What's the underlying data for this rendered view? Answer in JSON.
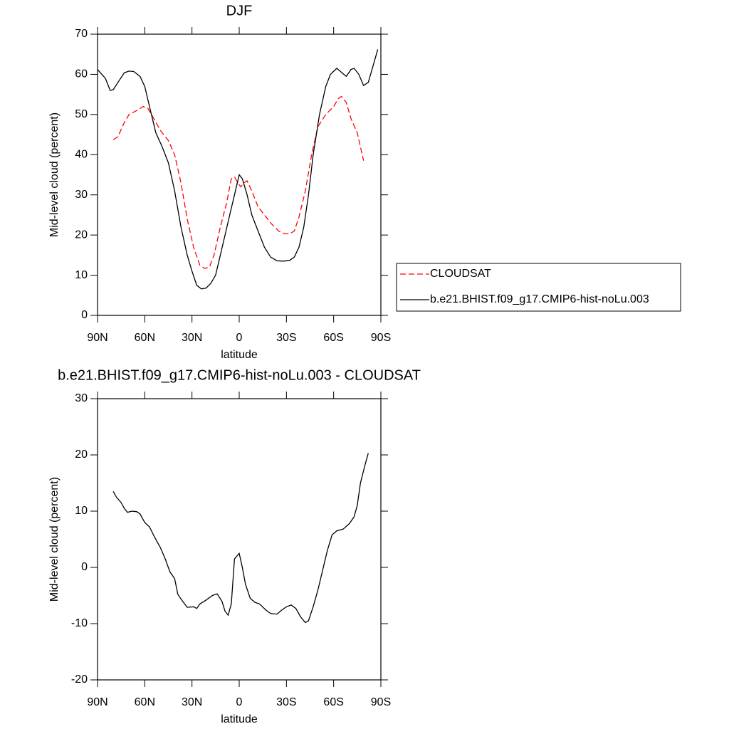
{
  "chart_data": [
    {
      "type": "line",
      "title": "DJF",
      "xlabel": "latitude",
      "ylabel": "Mid-level cloud (percent)",
      "xlim": [
        90,
        -90
      ],
      "xticks": [
        {
          "value": 90,
          "label": "90N"
        },
        {
          "value": 60,
          "label": "60N"
        },
        {
          "value": 30,
          "label": "30N"
        },
        0,
        {
          "value": -30,
          "label": "30S"
        },
        {
          "value": -60,
          "label": "60S"
        },
        {
          "value": -90,
          "label": "90S"
        }
      ],
      "ylim": [
        0,
        70
      ],
      "yticks": [
        0,
        10,
        20,
        30,
        40,
        50,
        60,
        70
      ],
      "legend": "right",
      "series": [
        {
          "name": "CLOUDSAT",
          "color": "#ff0000",
          "line_style": "dashed",
          "x": [
            80,
            77,
            73,
            70,
            65,
            61,
            58,
            55,
            50,
            45,
            41,
            37,
            33,
            29,
            25,
            22,
            19,
            16,
            12,
            8,
            5,
            3,
            1,
            -1,
            -3,
            -5,
            -8,
            -12,
            -16,
            -20,
            -25,
            -29,
            -32,
            -35,
            -38,
            -42,
            -46,
            -50,
            -55,
            -60,
            -63,
            -65,
            -68,
            -71,
            -75,
            -79
          ],
          "values": [
            43.7,
            44.5,
            48,
            50,
            51,
            52,
            51.5,
            49.5,
            46,
            43.5,
            40,
            33,
            24,
            17,
            12.5,
            11.7,
            12,
            15,
            22,
            28,
            34,
            34.5,
            33,
            32,
            33,
            33.5,
            31,
            27,
            25,
            23,
            21,
            20.3,
            20.3,
            21,
            24.5,
            31,
            40,
            47,
            50,
            52,
            54,
            54.5,
            53,
            49,
            45.5,
            38.5
          ]
        },
        {
          "name": "b.e21.BHIST.f09_g17.CMIP6-hist-noLu.003",
          "color": "#000000",
          "line_style": "solid",
          "x": [
            90,
            85,
            82,
            80,
            77,
            73,
            70,
            67,
            63,
            60,
            57,
            53,
            49,
            45,
            41,
            37,
            33,
            30,
            27,
            24,
            21,
            18,
            15,
            12,
            9,
            6,
            3,
            0,
            -2,
            -5,
            -8,
            -12,
            -16,
            -20,
            -24,
            -28,
            -32,
            -35,
            -38,
            -41,
            -44,
            -47,
            -51,
            -55,
            -58,
            -62,
            -65,
            -68,
            -71,
            -73,
            -76,
            -79,
            -82,
            -85,
            -88
          ],
          "values": [
            61.2,
            59,
            56,
            56.2,
            58,
            60.4,
            60.8,
            60.7,
            59.5,
            57,
            52,
            45.5,
            42,
            38,
            31,
            22,
            15,
            11,
            7.5,
            6.6,
            6.8,
            8,
            10,
            15,
            20,
            25,
            30,
            35,
            34,
            30,
            25,
            21,
            17,
            14.5,
            13.6,
            13.5,
            13.7,
            14.5,
            17,
            22,
            30,
            40,
            50,
            57,
            60,
            61.5,
            60.5,
            59.5,
            61.2,
            61.5,
            60,
            57.2,
            58,
            62,
            66.2
          ]
        }
      ]
    },
    {
      "type": "line",
      "title": "b.e21.BHIST.f09_g17.CMIP6-hist-noLu.003 - CLOUDSAT",
      "xlabel": "latitude",
      "ylabel": "Mid-level cloud (percent)",
      "xlim": [
        90,
        -90
      ],
      "xticks": [
        {
          "value": 90,
          "label": "90N"
        },
        {
          "value": 60,
          "label": "60N"
        },
        {
          "value": 30,
          "label": "30N"
        },
        0,
        {
          "value": -30,
          "label": "30S"
        },
        {
          "value": -60,
          "label": "60S"
        },
        {
          "value": -90,
          "label": "90S"
        }
      ],
      "ylim": [
        -20,
        30
      ],
      "yticks": [
        -20,
        -10,
        0,
        10,
        20,
        30
      ],
      "series": [
        {
          "color": "#000000",
          "line_style": "solid",
          "x": [
            80,
            78,
            75,
            73,
            71,
            68,
            65,
            63,
            60,
            57,
            54,
            50,
            47,
            44,
            41,
            39,
            36,
            33,
            29,
            27,
            25,
            21,
            17,
            14,
            11,
            9,
            7,
            5,
            3,
            0,
            -2,
            -4,
            -7,
            -10,
            -13,
            -17,
            -20,
            -24,
            -27,
            -30,
            -33,
            -36,
            -39,
            -42,
            -44,
            -47,
            -50,
            -53,
            -56,
            -59,
            -62,
            -66,
            -70,
            -73,
            -75,
            -77,
            -80,
            -82
          ],
          "values": [
            13.5,
            12.5,
            11.5,
            10.5,
            9.8,
            10,
            9.9,
            9.5,
            8,
            7.2,
            5.5,
            3.5,
            1.5,
            -0.8,
            -2,
            -4.8,
            -6,
            -7.1,
            -7,
            -7.3,
            -6.5,
            -5.8,
            -5,
            -4.7,
            -6,
            -7.8,
            -8.5,
            -6.5,
            1.5,
            2.5,
            0,
            -3,
            -5.5,
            -6.2,
            -6.5,
            -7.6,
            -8.2,
            -8.3,
            -7.6,
            -7,
            -6.7,
            -7.3,
            -8.8,
            -9.8,
            -9.5,
            -7,
            -4,
            -0.5,
            3,
            5.8,
            6.5,
            6.8,
            7.8,
            9,
            11,
            15,
            18.3,
            20.3
          ]
        }
      ]
    }
  ]
}
